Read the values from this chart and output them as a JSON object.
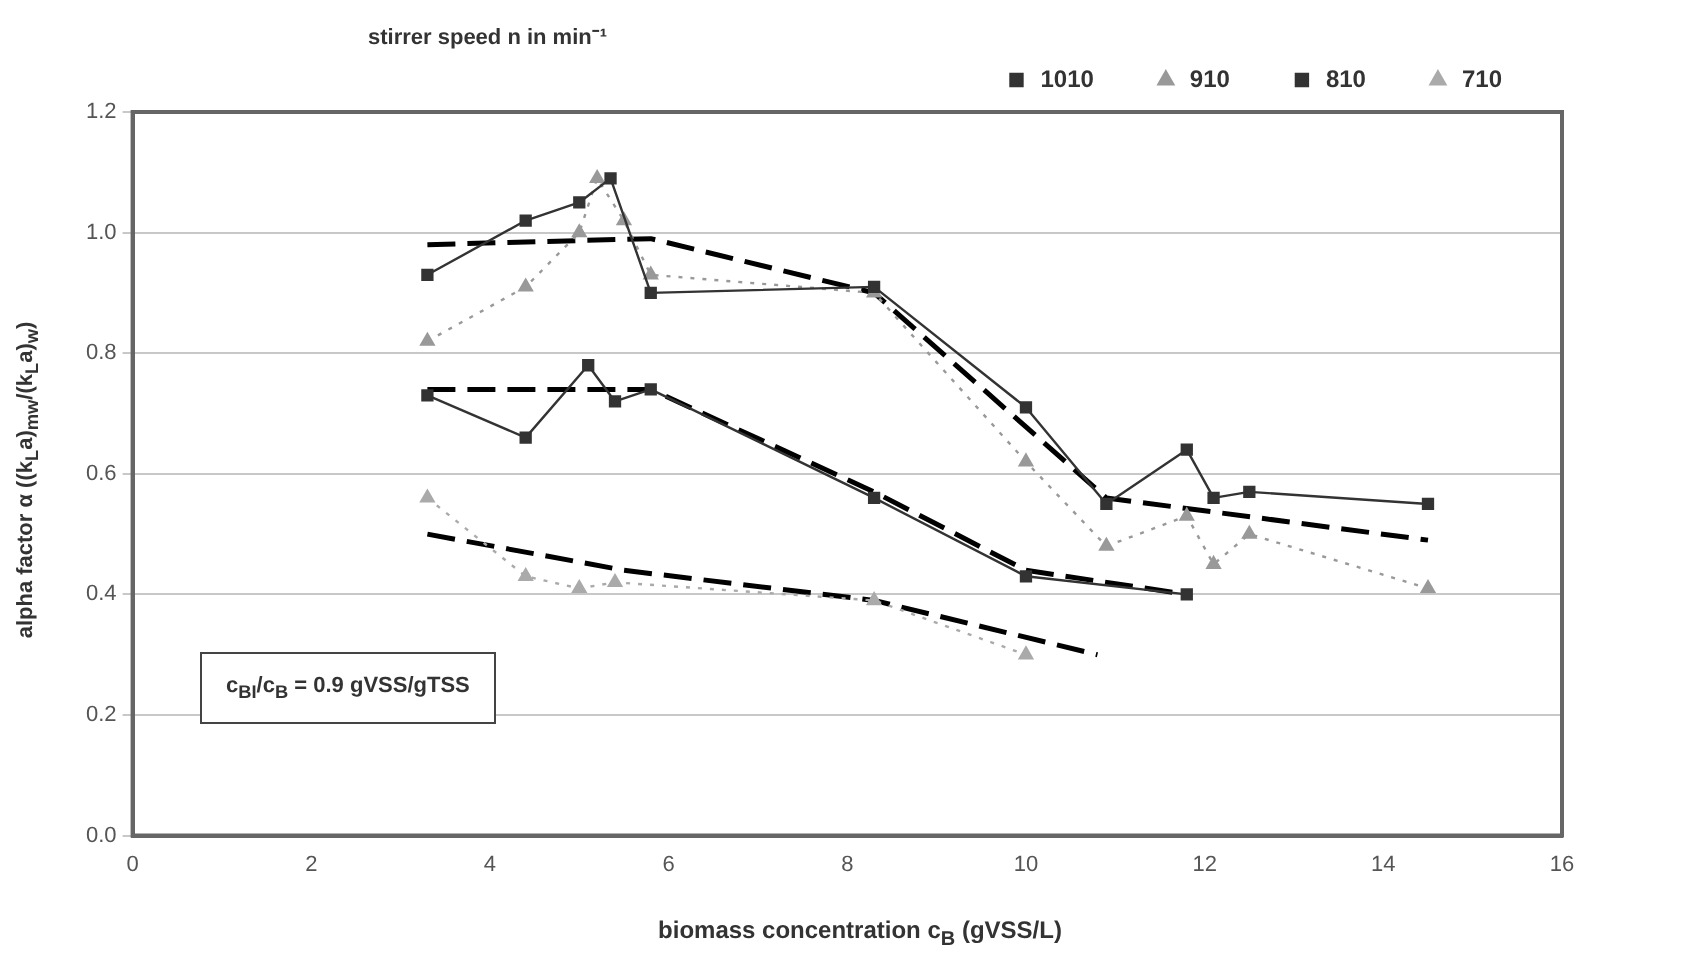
{
  "chart_data": {
    "type": "line",
    "xlabel": "biomass concentration c$_{B}$ (gVSS/L)",
    "ylabel": "alpha factor α ((k$_{L}$a)$_{mw}$/(k$_{L}$a)$_{w}$)",
    "legend_title": "stirrer speed n in min⁻¹",
    "annotations": [
      "c$_{BI}$/c$_{B}$ = 0.9 gVSS/gTSS"
    ],
    "xlim": [
      0,
      16
    ],
    "xticks": [
      0,
      2,
      4,
      6,
      8,
      10,
      12,
      14,
      16
    ],
    "ylim": [
      0,
      1.2
    ],
    "yticks": [
      {
        "value": 0,
        "label": "0.0"
      },
      0.2,
      0.4,
      0.6,
      0.8,
      {
        "value": 1,
        "label": "1.0"
      },
      1.2
    ],
    "grid": "y",
    "legend": "top right",
    "series": [
      {
        "name": "1010",
        "color": "#333333",
        "marker": "square",
        "line_style": "solid",
        "x": [
          3.3,
          4.4,
          5.0,
          5.35,
          5.8,
          8.3,
          10.0,
          10.9,
          11.8,
          12.1,
          12.5,
          14.5
        ],
        "values": [
          0.93,
          1.02,
          1.05,
          1.09,
          0.9,
          0.91,
          0.71,
          0.55,
          0.64,
          0.56,
          0.57,
          0.55
        ]
      },
      {
        "name": "910",
        "color": "#999999",
        "marker": "triangle",
        "line_style": "dotted",
        "x": [
          3.3,
          4.4,
          5.0,
          5.2,
          5.5,
          5.8,
          8.3,
          10.0,
          10.9,
          11.8,
          12.1,
          12.5,
          14.5
        ],
        "values": [
          0.82,
          0.91,
          1.0,
          1.09,
          1.02,
          0.93,
          0.9,
          0.62,
          0.48,
          0.53,
          0.45,
          0.5,
          0.41
        ]
      },
      {
        "name": "810",
        "color": "#333333",
        "marker": "square",
        "line_style": "solid",
        "x": [
          3.3,
          4.4,
          5.1,
          5.4,
          5.8,
          8.3,
          10.0,
          11.8
        ],
        "values": [
          0.73,
          0.66,
          0.78,
          0.72,
          0.74,
          0.56,
          0.43,
          0.4
        ]
      },
      {
        "name": "710",
        "color": "#aaaaaa",
        "marker": "triangle",
        "line_style": "dotted",
        "x": [
          3.3,
          4.4,
          5.0,
          5.4,
          8.3,
          10.0
        ],
        "values": [
          0.56,
          0.43,
          0.41,
          0.42,
          0.39,
          0.3
        ]
      },
      {
        "color": "#000000",
        "marker": "none",
        "line_style": "dashed",
        "x": [
          3.3,
          5.8,
          8.3,
          10.9,
          14.5
        ],
        "values": [
          0.98,
          0.99,
          0.9,
          0.56,
          0.49
        ]
      },
      {
        "color": "#000000",
        "marker": "none",
        "line_style": "dashed",
        "x": [
          3.3,
          5.8,
          8.3,
          10.0,
          11.8
        ],
        "values": [
          0.74,
          0.74,
          0.57,
          0.44,
          0.4
        ]
      },
      {
        "color": "#000000",
        "marker": "none",
        "line_style": "dashed",
        "x": [
          3.3,
          5.5,
          8.3,
          10.8
        ],
        "values": [
          0.5,
          0.44,
          0.39,
          0.3
        ]
      }
    ]
  }
}
